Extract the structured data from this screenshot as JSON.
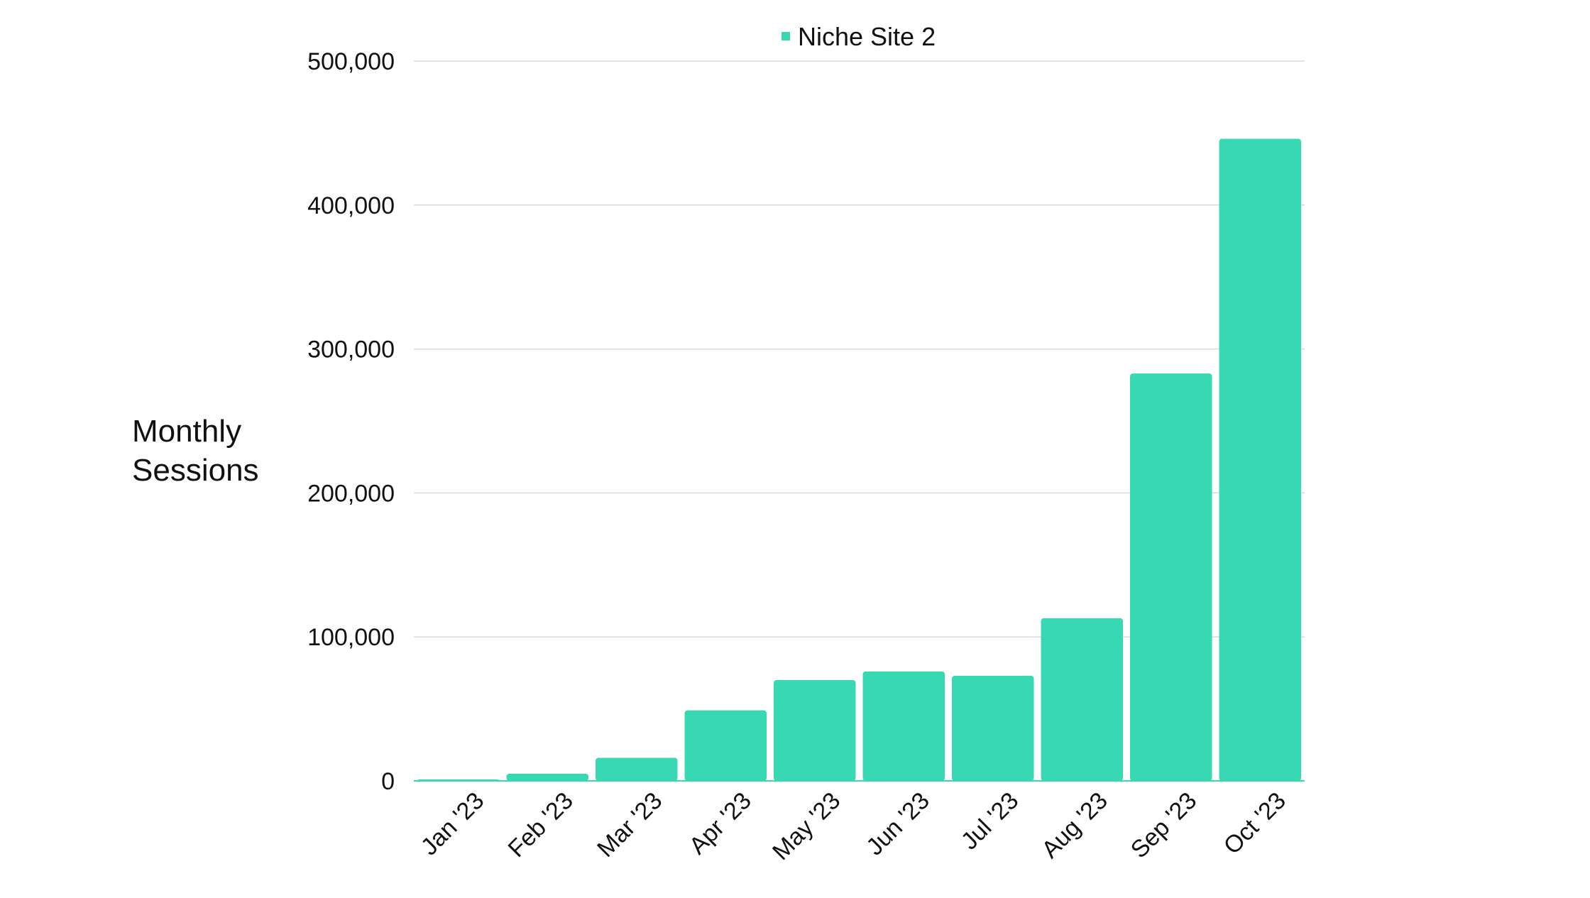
{
  "chart_data": {
    "type": "bar",
    "title": "",
    "xlabel": "",
    "ylabel": "Monthly Sessions",
    "ylabel_lines": [
      "Monthly",
      "Sessions"
    ],
    "categories": [
      "Jan '23",
      "Feb '23",
      "Mar '23",
      "Apr '23",
      "May '23",
      "Jun '23",
      "Jul '23",
      "Aug '23",
      "Sep '23",
      "Oct '23"
    ],
    "series": [
      {
        "name": "Niche Site 2",
        "color": "#38D9B2",
        "values": [
          1000,
          5000,
          16000,
          49000,
          70000,
          76000,
          73000,
          113000,
          283000,
          446000
        ]
      }
    ],
    "ylim": [
      0,
      500000
    ],
    "yticks": [
      0,
      100000,
      200000,
      300000,
      400000,
      500000
    ],
    "ytick_labels": [
      "0",
      "100,000",
      "200,000",
      "300,000",
      "400,000",
      "500,000"
    ],
    "grid": true,
    "gridline_color": "#D9D9D9",
    "legend_position": "top"
  }
}
